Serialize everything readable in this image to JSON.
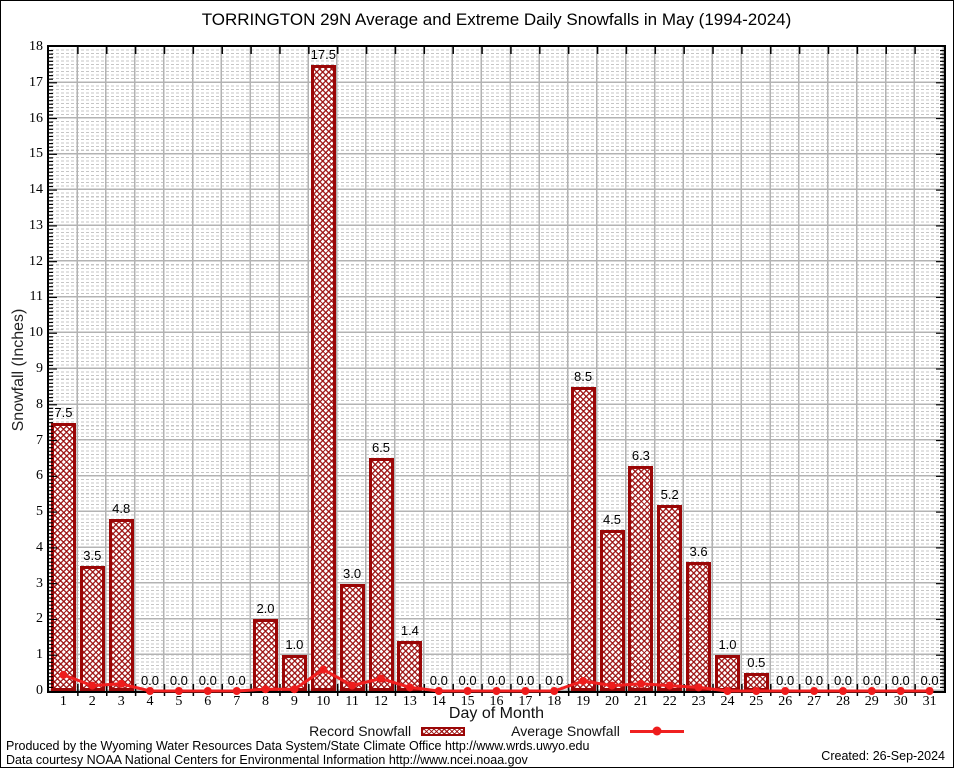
{
  "title": "TORRINGTON 29N Average and Extreme Daily Snowfalls in May (1994-2024)",
  "axes": {
    "y_label": "Snowfall (Inches)",
    "x_label": "Day of Month",
    "y_ticks": [
      0,
      1,
      2,
      3,
      4,
      5,
      6,
      7,
      8,
      9,
      10,
      11,
      12,
      13,
      14,
      15,
      16,
      17,
      18
    ],
    "x_ticks": [
      1,
      2,
      3,
      4,
      5,
      6,
      7,
      8,
      9,
      10,
      11,
      12,
      13,
      14,
      15,
      16,
      17,
      18,
      19,
      20,
      21,
      22,
      23,
      24,
      25,
      26,
      27,
      28,
      29,
      30,
      31
    ]
  },
  "legend": {
    "record_label": "Record Snowfall",
    "average_label": "Average Snowfall"
  },
  "footer": {
    "line1": "Produced by the Wyoming Water Resources Data System/State Climate Office http://www.wrds.uwyo.edu",
    "line2": "Data courtesy NOAA National Centers for Environmental Information http://www.ncei.noaa.gov",
    "created": "Created: 26-Sep-2024"
  },
  "colors": {
    "bar_border": "#9b0606",
    "bar_hatch": "#980808",
    "average_line": "#f02020",
    "grid_major": "#b3b3b3",
    "grid_minor": "#c6c6c6",
    "axis": "#000000"
  },
  "chart_data": {
    "type": "bar",
    "title": "TORRINGTON 29N Average and Extreme Daily Snowfalls in May (1994-2024)",
    "xlabel": "Day of Month",
    "ylabel": "Snowfall (Inches)",
    "ylim": [
      0,
      18
    ],
    "y_major_step": 1,
    "y_minor_step": 0.1,
    "grid": true,
    "legend_position": "bottom",
    "categories": [
      1,
      2,
      3,
      4,
      5,
      6,
      7,
      8,
      9,
      10,
      11,
      12,
      13,
      14,
      15,
      16,
      17,
      18,
      19,
      20,
      21,
      22,
      23,
      24,
      25,
      26,
      27,
      28,
      29,
      30,
      31
    ],
    "series": [
      {
        "name": "Record Snowfall",
        "type": "bar",
        "values": [
          7.5,
          3.5,
          4.8,
          0.0,
          0.0,
          0.0,
          0.0,
          2.0,
          1.0,
          17.5,
          3.0,
          6.5,
          1.4,
          0.0,
          0.0,
          0.0,
          0.0,
          0.0,
          8.5,
          4.5,
          6.3,
          5.2,
          3.6,
          1.0,
          0.5,
          0.0,
          0.0,
          0.0,
          0.0,
          0.0,
          0.0
        ],
        "labels": [
          "7.5",
          "3.5",
          "4.8",
          "0.0",
          "0.0",
          "0.0",
          "0.0",
          "2.0",
          "1.0",
          "17.5",
          "3.0",
          "6.5",
          "1.4",
          "0.0",
          "0.0",
          "0.0",
          "0.0",
          "0.0",
          "8.5",
          "4.5",
          "6.3",
          "5.2",
          "3.6",
          "1.0",
          "0.5",
          "0.0",
          "0.0",
          "0.0",
          "0.0",
          "0.0",
          "0.0"
        ]
      },
      {
        "name": "Average Snowfall",
        "type": "line",
        "values": [
          0.45,
          0.15,
          0.2,
          0.0,
          0.0,
          0.0,
          0.0,
          0.05,
          0.05,
          0.6,
          0.15,
          0.35,
          0.1,
          0.0,
          0.0,
          0.0,
          0.0,
          0.0,
          0.28,
          0.15,
          0.2,
          0.15,
          0.1,
          0.0,
          0.0,
          0.0,
          0.0,
          0.0,
          0.0,
          0.0,
          0.0
        ]
      }
    ]
  }
}
